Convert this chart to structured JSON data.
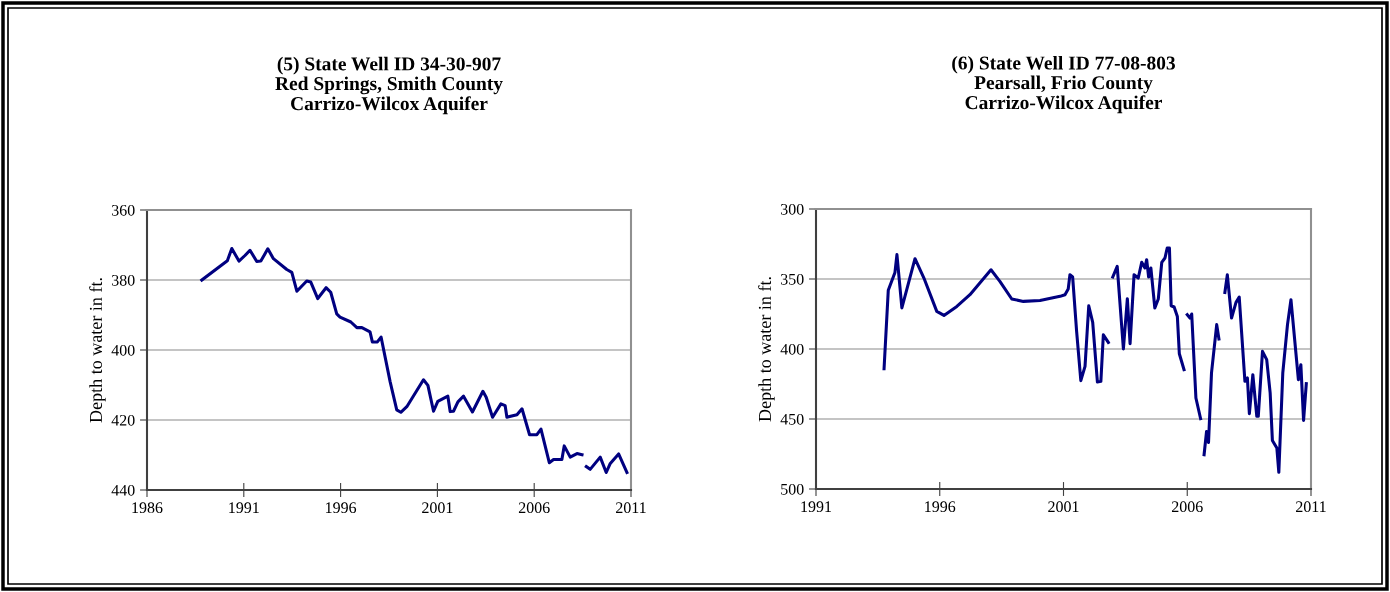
{
  "chart_data": [
    {
      "type": "line",
      "title": "(5) State Well ID 34-30-907\nRed Springs, Smith County\nCarrizo-Wilcox Aquifer",
      "ylabel": "Depth to water in ft.",
      "xlim": [
        1986,
        2011
      ],
      "xticks": [
        1986,
        1991,
        1996,
        2001,
        2006,
        2011
      ],
      "ylim": [
        440,
        360
      ],
      "yticks": [
        360,
        380,
        400,
        420,
        440
      ],
      "grid": "y",
      "legend": false,
      "marker": "none",
      "line_style": "solid",
      "series": [
        {
          "color": "#000080",
          "x": [
            1988.83,
            1990.15,
            1990.38,
            1990.75,
            1991.06,
            1991.32,
            1991.67,
            1991.88,
            1992.24,
            1992.53,
            1993.22,
            1993.48,
            1993.74,
            1994.25,
            1994.46,
            1994.82,
            1995.25,
            1995.49,
            1995.8,
            1995.97,
            1996.53,
            1996.84,
            1997.1,
            1997.52,
            1997.64,
            1997.9,
            1998.09,
            1998.56,
            1998.9,
            1999.11,
            1999.42,
            2000.28,
            2000.51,
            2000.8,
            2001.02,
            2001.54,
            2001.66,
            2001.83,
            2002.06,
            2002.35,
            2002.81,
            2003.35,
            2003.52,
            2003.85,
            2004.28,
            2004.5,
            2004.59,
            2005.11,
            2005.37,
            2005.76,
            2006.14,
            2006.35,
            2006.78,
            2007.0,
            2007.43,
            2007.55,
            2007.86,
            2008.21,
            2008.47,
            2008.58,
            2008.69,
            2008.89,
            2009.41,
            2009.72,
            2009.93,
            2010.36,
            2010.79
          ],
          "values": [
            380.0,
            374.5,
            371.0,
            374.6,
            373.0,
            371.5,
            374.7,
            374.6,
            371.1,
            373.9,
            377.0,
            377.8,
            383.2,
            380.3,
            380.6,
            385.3,
            382.2,
            383.5,
            389.7,
            390.6,
            392.0,
            393.6,
            393.6,
            394.8,
            397.7,
            397.7,
            396.3,
            409.1,
            417.1,
            417.8,
            416.2,
            408.5,
            410.1,
            417.5,
            414.7,
            413.2,
            417.6,
            417.5,
            414.8,
            413.2,
            417.7,
            411.8,
            413.5,
            419.2,
            415.4,
            415.9,
            419.2,
            418.5,
            416.8,
            424.2,
            424.2,
            422.6,
            432.2,
            431.3,
            431.3,
            427.4,
            430.6,
            429.6,
            429.9,
            null,
            433.3,
            434.1,
            430.6,
            435.0,
            432.4,
            429.7,
            435.0
          ]
        }
      ]
    },
    {
      "type": "line",
      "title": "(6) State Well ID 77-08-803\nPearsall, Frio County\nCarrizo-Wilcox Aquifer",
      "ylabel": "Depth to water in ft.",
      "xlim": [
        1991,
        2011
      ],
      "xticks": [
        1991,
        1996,
        2001,
        2006,
        2011
      ],
      "ylim": [
        500,
        300
      ],
      "yticks": [
        300,
        350,
        400,
        450,
        500
      ],
      "grid": "y",
      "legend": false,
      "marker": "none",
      "line_style": "solid",
      "series": [
        {
          "color": "#000080",
          "x": [
            1993.75,
            1993.92,
            1994.19,
            1994.27,
            1994.47,
            1995.0,
            1995.36,
            1995.88,
            1996.17,
            1996.69,
            1997.22,
            1998.07,
            1998.43,
            1998.91,
            1999.38,
            2000.05,
            2000.86,
            2001.06,
            2001.19,
            2001.26,
            2001.37,
            2001.53,
            2001.7,
            2001.87,
            2002.02,
            2002.18,
            2002.37,
            2002.51,
            2002.61,
            2002.81,
            2002.9,
            2002.99,
            2003.17,
            2003.42,
            2003.58,
            2003.69,
            2003.85,
            2004.02,
            2004.16,
            2004.29,
            2004.36,
            2004.44,
            2004.53,
            2004.69,
            2004.83,
            2004.97,
            2005.1,
            2005.19,
            2005.28,
            2005.35,
            2005.47,
            2005.6,
            2005.68,
            2005.87,
            2005.94,
            2006.0,
            2006.11,
            2006.18,
            2006.35,
            2006.54,
            2006.61,
            2006.68,
            2006.78,
            2006.86,
            2006.98,
            2007.19,
            2007.28,
            2007.4,
            2007.52,
            2007.62,
            2007.79,
            2007.97,
            2008.1,
            2008.33,
            2008.43,
            2008.51,
            2008.65,
            2008.81,
            2008.87,
            2009.04,
            2009.21,
            2009.35,
            2009.44,
            2009.62,
            2009.7,
            2009.86,
            2010.05,
            2010.19,
            2010.49,
            2010.59,
            2010.7,
            2010.81
          ],
          "values": [
            414.1,
            358.1,
            345.3,
            332.6,
            370.7,
            335.5,
            349.3,
            373.1,
            376.0,
            369.6,
            361.2,
            343.4,
            351.7,
            364.3,
            366.0,
            365.3,
            362.4,
            361.2,
            357.2,
            347.0,
            348.6,
            387.4,
            422.6,
            412.4,
            369.1,
            381.0,
            423.6,
            423.1,
            389.8,
            395.3,
            null,
            348.6,
            341.0,
            400.0,
            364.1,
            396.2,
            347.0,
            349.3,
            338.1,
            342.1,
            336.2,
            348.6,
            342.1,
            370.7,
            364.3,
            338.1,
            335.0,
            327.9,
            327.9,
            369.1,
            370.0,
            376.7,
            403.4,
            414.8,
            null,
            375.5,
            377.9,
            375.0,
            435.0,
            449.8,
            null,
            475.5,
            458.9,
            466.7,
            417.1,
            382.6,
            392.9,
            null,
            359.6,
            347.0,
            377.9,
            366.7,
            362.9,
            423.1,
            420.7,
            446.2,
            418.4,
            448.1,
            448.1,
            401.7,
            407.6,
            431.4,
            465.3,
            470.7,
            488.1,
            417.1,
            382.6,
            364.8,
            421.9,
            411.2,
            451.0,
            424.8
          ]
        }
      ]
    }
  ]
}
